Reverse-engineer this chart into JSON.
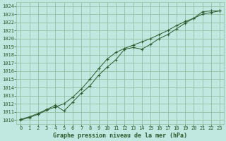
{
  "title": "Graphe pression niveau de la mer (hPa)",
  "bg_color": "#c0e8e0",
  "grid_color": "#90c0a0",
  "line_color": "#2d5a2d",
  "xlim": [
    -0.5,
    23.5
  ],
  "ylim": [
    1009.5,
    1024.5
  ],
  "xticks": [
    0,
    1,
    2,
    3,
    4,
    5,
    6,
    7,
    8,
    9,
    10,
    11,
    12,
    13,
    14,
    15,
    16,
    17,
    18,
    19,
    20,
    21,
    22,
    23
  ],
  "yticks": [
    1010,
    1011,
    1012,
    1013,
    1014,
    1015,
    1016,
    1017,
    1018,
    1019,
    1020,
    1021,
    1022,
    1023,
    1024
  ],
  "series1_x": [
    0,
    1,
    2,
    3,
    4,
    5,
    6,
    7,
    8,
    9,
    10,
    11,
    12,
    13,
    14,
    15,
    16,
    17,
    18,
    19,
    20,
    21,
    22,
    23
  ],
  "series1_y": [
    1010.1,
    1010.4,
    1010.8,
    1011.3,
    1011.8,
    1011.1,
    1012.2,
    1013.3,
    1014.2,
    1015.5,
    1016.5,
    1017.4,
    1018.7,
    1018.9,
    1018.7,
    1019.3,
    1020.0,
    1020.5,
    1021.2,
    1021.9,
    1022.5,
    1023.3,
    1023.4,
    1023.4
  ],
  "series2_x": [
    0,
    1,
    2,
    3,
    4,
    5,
    6,
    7,
    8,
    9,
    10,
    11,
    12,
    13,
    14,
    15,
    16,
    17,
    18,
    19,
    20,
    21,
    22,
    23
  ],
  "series2_y": [
    1010.0,
    1010.3,
    1010.7,
    1011.2,
    1011.6,
    1012.0,
    1012.8,
    1013.8,
    1015.0,
    1016.3,
    1017.5,
    1018.3,
    1018.8,
    1019.2,
    1019.6,
    1020.0,
    1020.5,
    1021.0,
    1021.6,
    1022.1,
    1022.5,
    1023.0,
    1023.2,
    1023.4
  ],
  "tick_fontsize": 5,
  "label_fontsize": 6
}
